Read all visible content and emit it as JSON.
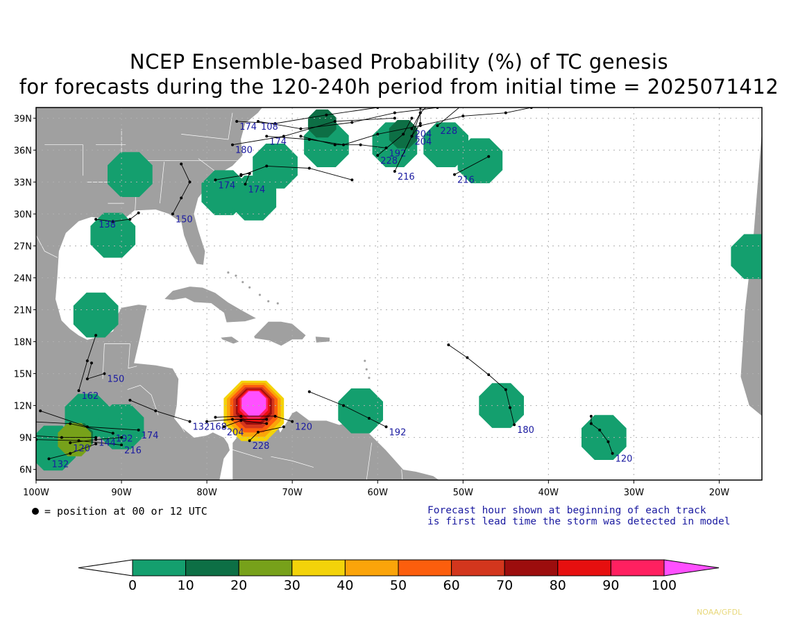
{
  "title": {
    "line1": "NCEP Ensemble-based Probability (%) of TC genesis",
    "line2": "for forecasts during the 120-240h period from initial time = 2025071412"
  },
  "map": {
    "lon_range": [
      -100,
      -15
    ],
    "lat_range": [
      5,
      40
    ],
    "lon_ticks": [
      "100W",
      "90W",
      "80W",
      "70W",
      "60W",
      "50W",
      "40W",
      "30W",
      "20W"
    ],
    "lat_ticks": [
      "39N",
      "36N",
      "33N",
      "30N",
      "27N",
      "24N",
      "21N",
      "18N",
      "15N",
      "12N",
      "9N",
      "6N"
    ],
    "colors": {
      "land": "#a0a0a0",
      "ocean": "#ffffff",
      "track": "#000000",
      "track_label": "#1a1aa0",
      "grid": "#b0b0b0"
    }
  },
  "probability_blobs": [
    {
      "lon": -89,
      "lat": 33.7,
      "level": 0
    },
    {
      "lon": -78,
      "lat": 32,
      "level": 0
    },
    {
      "lon": -74.5,
      "lat": 31.5,
      "level": 0
    },
    {
      "lon": -72,
      "lat": 34.5,
      "level": 0
    },
    {
      "lon": -66,
      "lat": 36.5,
      "level": 0
    },
    {
      "lon": -58,
      "lat": 36.5,
      "level": 0
    },
    {
      "lon": -52,
      "lat": 36.5,
      "level": 0
    },
    {
      "lon": -48,
      "lat": 35,
      "level": 0
    },
    {
      "lon": -91,
      "lat": 28,
      "level": 0
    },
    {
      "lon": -93,
      "lat": 20.5,
      "level": 0
    },
    {
      "lon": -94,
      "lat": 11,
      "level": 0
    },
    {
      "lon": -98,
      "lat": 8,
      "level": 0
    },
    {
      "lon": -90,
      "lat": 10,
      "level": 0
    },
    {
      "lon": -75,
      "lat": 11.5,
      "level": 0
    },
    {
      "lon": -62,
      "lat": 11.5,
      "level": 0
    },
    {
      "lon": -45.5,
      "lat": 12,
      "level": 0
    },
    {
      "lon": -33.5,
      "lat": 9,
      "level": 0
    },
    {
      "lon": -16,
      "lat": 26,
      "level": 0
    },
    {
      "lon": -57,
      "lat": 37.5,
      "level": 1
    },
    {
      "lon": -66.5,
      "lat": 38.5,
      "level": 1
    },
    {
      "lon": -95,
      "lat": 9,
      "level": 1
    },
    {
      "lon": -95.5,
      "lat": 8.8,
      "level": 2
    },
    {
      "lon": -74.5,
      "lat": 11.5,
      "level": 3
    },
    {
      "lon": -74.5,
      "lat": 11.6,
      "level": 4
    },
    {
      "lon": -74.5,
      "lat": 11.7,
      "level": 5
    },
    {
      "lon": -74.5,
      "lat": 11.8,
      "level": 6
    },
    {
      "lon": -74.5,
      "lat": 11.9,
      "level": 7
    },
    {
      "lon": -74.5,
      "lat": 12,
      "level": 8
    },
    {
      "lon": -74.5,
      "lat": 12.1,
      "level": 9
    },
    {
      "lon": -74.5,
      "lat": 12.2,
      "level": 10
    }
  ],
  "tracks": [
    {
      "label": "174",
      "points": [
        [
          -76.5,
          38.7
        ],
        [
          -72,
          38.5
        ],
        [
          -66,
          39.3
        ],
        [
          -60,
          40
        ]
      ]
    },
    {
      "label": "108",
      "points": [
        [
          -74,
          38.7
        ],
        [
          -69,
          38
        ],
        [
          -63,
          38.6
        ],
        [
          -58,
          39.5
        ],
        [
          -53,
          40
        ]
      ]
    },
    {
      "label": "174",
      "points": [
        [
          -73,
          37.3
        ],
        [
          -68,
          37
        ],
        [
          -64,
          36.5
        ],
        [
          -60,
          37.5
        ],
        [
          -55,
          38.3
        ],
        [
          -50,
          39.2
        ],
        [
          -45,
          39.5
        ],
        [
          -42,
          40
        ]
      ]
    },
    {
      "label": "180",
      "points": [
        [
          -77,
          36.5
        ],
        [
          -71,
          37.3
        ],
        [
          -65,
          38.7
        ],
        [
          -58,
          39
        ]
      ]
    },
    {
      "label": "192",
      "points": [
        [
          -59,
          36.2
        ],
        [
          -62,
          36.5
        ],
        [
          -65,
          36.5
        ],
        [
          -69,
          37.3
        ]
      ]
    },
    {
      "label": "204",
      "points": [
        [
          -56,
          38
        ],
        [
          -55,
          39.5
        ],
        [
          -54,
          40.3
        ]
      ]
    },
    {
      "label": "204",
      "points": [
        [
          -56,
          37.3
        ],
        [
          -55,
          38.5
        ],
        [
          -55,
          40
        ]
      ]
    },
    {
      "label": "228",
      "points": [
        [
          -60,
          35.5
        ],
        [
          -57,
          37.5
        ],
        [
          -56,
          39
        ]
      ]
    },
    {
      "label": "228",
      "points": [
        [
          -53,
          38.3
        ],
        [
          -50,
          40.3
        ]
      ]
    },
    {
      "label": "216",
      "points": [
        [
          -58,
          34
        ],
        [
          -56,
          37.3
        ],
        [
          -55,
          39.5
        ]
      ]
    },
    {
      "label": "216",
      "points": [
        [
          -51,
          33.7
        ],
        [
          -47,
          35.4
        ]
      ]
    },
    {
      "label": "150",
      "points": [
        [
          -83,
          34.7
        ],
        [
          -82,
          33
        ],
        [
          -83,
          31.5
        ],
        [
          -84,
          30
        ]
      ]
    },
    {
      "label": "174",
      "points": [
        [
          -79,
          33.2
        ],
        [
          -76,
          33.6
        ],
        [
          -73,
          34.5
        ],
        [
          -68,
          34.3
        ],
        [
          -63,
          33.2
        ]
      ]
    },
    {
      "label": "174",
      "points": [
        [
          -75.5,
          32.8
        ],
        [
          -75,
          33.8
        ],
        [
          -76,
          33.7
        ]
      ]
    },
    {
      "label": "138",
      "points": [
        [
          -93,
          29.5
        ],
        [
          -91,
          29.3
        ],
        [
          -89,
          29.5
        ],
        [
          -88,
          30.1
        ]
      ]
    },
    {
      "label": "162",
      "points": [
        [
          -93,
          18.6
        ],
        [
          -94,
          16.2
        ],
        [
          -95,
          13.4
        ]
      ]
    },
    {
      "label": "150",
      "points": [
        [
          -93.5,
          16
        ],
        [
          -94,
          14.5
        ],
        [
          -92,
          15
        ]
      ]
    },
    {
      "label": "132",
      "points": [
        [
          -89,
          12.5
        ],
        [
          -86,
          11.5
        ],
        [
          -82,
          10.5
        ]
      ]
    },
    {
      "label": "192",
      "points": [
        [
          -101,
          10.5
        ],
        [
          -96,
          10.3
        ],
        [
          -91,
          9.4
        ]
      ]
    },
    {
      "label": "174",
      "points": [
        [
          -99.5,
          11.5
        ],
        [
          -94,
          10
        ],
        [
          -88,
          9.7
        ]
      ]
    },
    {
      "label": "216",
      "points": [
        [
          -100,
          8.8
        ],
        [
          -95,
          8.7
        ],
        [
          -90,
          8.3
        ]
      ]
    },
    {
      "label": "132",
      "points": [
        [
          -98.5,
          7
        ],
        [
          -96,
          7.5
        ],
        [
          -93,
          8.4
        ]
      ]
    },
    {
      "label": "144",
      "points": [
        [
          -101,
          9.2
        ],
        [
          -97,
          9
        ],
        [
          -93,
          9
        ]
      ]
    },
    {
      "label": "120",
      "points": [
        [
          -96,
          8.5
        ],
        [
          -93,
          8.8
        ],
        [
          -90,
          9
        ]
      ]
    },
    {
      "label": "120",
      "points": [
        [
          -79,
          10.9
        ],
        [
          -76,
          11
        ],
        [
          -72,
          11
        ],
        [
          -70,
          10.5
        ]
      ]
    },
    {
      "label": "168",
      "points": [
        [
          -80,
          10.5
        ],
        [
          -77,
          10.7
        ],
        [
          -73,
          10.7
        ]
      ]
    },
    {
      "label": "204",
      "points": [
        [
          -78,
          10
        ],
        [
          -76,
          10.6
        ],
        [
          -73,
          10.3
        ]
      ]
    },
    {
      "label": "228",
      "points": [
        [
          -75,
          8.7
        ],
        [
          -74,
          9.5
        ],
        [
          -71,
          10
        ]
      ]
    },
    {
      "label": "192",
      "points": [
        [
          -68,
          13.3
        ],
        [
          -64,
          12
        ],
        [
          -61,
          10.8
        ],
        [
          -59,
          10
        ]
      ]
    },
    {
      "label": "180",
      "points": [
        [
          -51.7,
          17.7
        ],
        [
          -49.5,
          16.5
        ],
        [
          -47,
          14.9
        ],
        [
          -45,
          13.5
        ],
        [
          -44.5,
          11.8
        ],
        [
          -44,
          10.2
        ]
      ]
    },
    {
      "label": "120",
      "points": [
        [
          -35,
          11
        ],
        [
          -35,
          10.3
        ],
        [
          -34,
          9.7
        ],
        [
          -33,
          8.6
        ],
        [
          -32.5,
          7.5
        ]
      ]
    }
  ],
  "legend": {
    "position_note": "= position at 00 or 12 UTC",
    "forecast_note_line1": "Forecast hour shown at beginning of each track",
    "forecast_note_line2": "is first lead time the storm was detected in model"
  },
  "colorbar": {
    "labels": [
      "0",
      "10",
      "20",
      "30",
      "40",
      "50",
      "60",
      "70",
      "80",
      "90",
      "100"
    ],
    "colors": [
      "#ffffff",
      "#149f6e",
      "#0d6f45",
      "#77a11a",
      "#f3d30a",
      "#fba40a",
      "#fc5e0d",
      "#d3361d",
      "#9c0d0d",
      "#e60f0f",
      "#ff2060",
      "#ff50ff"
    ]
  },
  "credit": "NOAA/GFDL"
}
